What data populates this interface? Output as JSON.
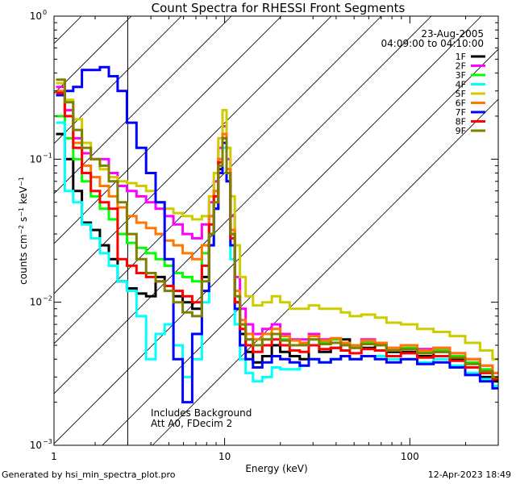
{
  "footer": {
    "generated": "Generated by hsi_min_spectra_plot.pro",
    "timestamp": "12-Apr-2023 18:49"
  },
  "chart_data": {
    "type": "line",
    "title": "Count Spectra for RHESSI Front Segments",
    "xlabel": "Energy (keV)",
    "ylabel_parts": {
      "a": "counts cm",
      "exp1": "−2",
      "b": " s",
      "exp2": "−1",
      "c": " keV",
      "exp3": "−1"
    },
    "xscale": "log",
    "yscale": "log",
    "xlim": [
      1.2,
      300
    ],
    "ylim": [
      0.001,
      1
    ],
    "xticks": [
      {
        "value": 1,
        "label": "1"
      },
      {
        "value": 10,
        "label": "10"
      },
      {
        "value": 100,
        "label": "100"
      }
    ],
    "yticks": [
      {
        "value": 0.001,
        "base": "10",
        "exp": "−3"
      },
      {
        "value": 0.01,
        "base": "10",
        "exp": "−2"
      },
      {
        "value": 0.1,
        "base": "10",
        "exp": "−1"
      },
      {
        "value": 1,
        "base": "10",
        "exp": "0"
      }
    ],
    "date": "23-Aug-2005",
    "time_range": "04:09:00 to 04:10:00",
    "annotations": [
      "Includes Background",
      "Att A0, FDecim 2"
    ],
    "hatch_upper_energy": 3,
    "legend_position": "top-right",
    "x": [
      1.3,
      1.45,
      1.6,
      1.8,
      2.0,
      2.25,
      2.5,
      2.8,
      3.15,
      3.55,
      4.0,
      4.5,
      5.0,
      5.6,
      6.3,
      7.1,
      8.0,
      8.5,
      9.0,
      9.5,
      10.0,
      10.5,
      11.0,
      11.7,
      12.5,
      13.5,
      15.0,
      17.0,
      19.0,
      21.0,
      24.0,
      27.0,
      30.0,
      35.0,
      40.0,
      45.0,
      50.0,
      60.0,
      70.0,
      80.0,
      100.0,
      120.0,
      150.0,
      180.0,
      220.0,
      260.0,
      300.0
    ],
    "series": [
      {
        "name": "1F",
        "color": "#000000",
        "values": [
          0.15,
          0.1,
          0.06,
          0.036,
          0.032,
          0.025,
          0.02,
          0.014,
          0.0125,
          0.0115,
          0.011,
          0.015,
          0.013,
          0.011,
          0.01,
          0.009,
          0.015,
          0.03,
          0.045,
          0.085,
          0.14,
          0.08,
          0.03,
          0.01,
          0.006,
          0.0045,
          0.0038,
          0.0042,
          0.005,
          0.0045,
          0.0042,
          0.004,
          0.005,
          0.0045,
          0.0048,
          0.0055,
          0.005,
          0.0048,
          0.0052,
          0.0045,
          0.0045,
          0.0042,
          0.0045,
          0.004,
          0.0035,
          0.003,
          0.0028
        ]
      },
      {
        "name": "2F",
        "color": "#ff00ff",
        "values": [
          0.32,
          0.22,
          0.14,
          0.11,
          0.1,
          0.1,
          0.08,
          0.065,
          0.06,
          0.055,
          0.05,
          0.045,
          0.04,
          0.035,
          0.03,
          0.028,
          0.035,
          0.05,
          0.07,
          0.12,
          0.17,
          0.1,
          0.04,
          0.015,
          0.009,
          0.007,
          0.006,
          0.0065,
          0.007,
          0.006,
          0.0055,
          0.0055,
          0.006,
          0.0055,
          0.0055,
          0.005,
          0.005,
          0.0055,
          0.0052,
          0.0048,
          0.005,
          0.0047,
          0.0048,
          0.0044,
          0.004,
          0.0036,
          0.0032
        ]
      },
      {
        "name": "3F",
        "color": "#00ff00",
        "values": [
          0.2,
          0.14,
          0.1,
          0.07,
          0.055,
          0.045,
          0.038,
          0.03,
          0.026,
          0.024,
          0.022,
          0.02,
          0.018,
          0.016,
          0.015,
          0.014,
          0.022,
          0.04,
          0.06,
          0.1,
          0.15,
          0.085,
          0.03,
          0.011,
          0.007,
          0.0055,
          0.005,
          0.0055,
          0.006,
          0.0055,
          0.005,
          0.005,
          0.0055,
          0.0052,
          0.0055,
          0.005,
          0.0048,
          0.0052,
          0.005,
          0.0046,
          0.0048,
          0.0045,
          0.0046,
          0.0042,
          0.0038,
          0.0034,
          0.003
        ]
      },
      {
        "name": "4F",
        "color": "#00ffff",
        "values": [
          0.18,
          0.06,
          0.05,
          0.035,
          0.028,
          0.022,
          0.018,
          0.014,
          0.012,
          0.008,
          0.004,
          0.006,
          0.007,
          0.005,
          0.003,
          0.004,
          0.01,
          0.025,
          0.045,
          0.08,
          0.12,
          0.07,
          0.02,
          0.007,
          0.004,
          0.0032,
          0.0028,
          0.003,
          0.0035,
          0.0034,
          0.0034,
          0.0036,
          0.004,
          0.0038,
          0.004,
          0.0042,
          0.004,
          0.0042,
          0.0042,
          0.004,
          0.004,
          0.0038,
          0.004,
          0.0036,
          0.0032,
          0.0029,
          0.0026
        ]
      },
      {
        "name": "5F",
        "color": "#cccc00",
        "values": [
          0.34,
          0.26,
          0.19,
          0.13,
          0.1,
          0.085,
          0.075,
          0.07,
          0.068,
          0.065,
          0.06,
          0.05,
          0.045,
          0.042,
          0.04,
          0.038,
          0.04,
          0.055,
          0.08,
          0.14,
          0.22,
          0.12,
          0.055,
          0.025,
          0.015,
          0.011,
          0.0095,
          0.01,
          0.011,
          0.01,
          0.009,
          0.009,
          0.0095,
          0.009,
          0.009,
          0.0085,
          0.008,
          0.0082,
          0.0078,
          0.0072,
          0.007,
          0.0065,
          0.0062,
          0.0058,
          0.0052,
          0.0046,
          0.004
        ]
      },
      {
        "name": "6F",
        "color": "#ff7700",
        "values": [
          0.3,
          0.2,
          0.13,
          0.09,
          0.075,
          0.065,
          0.055,
          0.046,
          0.04,
          0.036,
          0.033,
          0.03,
          0.027,
          0.025,
          0.022,
          0.02,
          0.025,
          0.04,
          0.06,
          0.1,
          0.15,
          0.085,
          0.032,
          0.012,
          0.0075,
          0.006,
          0.0055,
          0.006,
          0.0065,
          0.0058,
          0.0054,
          0.0052,
          0.0058,
          0.0054,
          0.0056,
          0.0052,
          0.005,
          0.0054,
          0.0052,
          0.0048,
          0.005,
          0.0046,
          0.0048,
          0.0044,
          0.004,
          0.0036,
          0.0032
        ]
      },
      {
        "name": "7F",
        "color": "#0000ff",
        "values": [
          0.28,
          0.3,
          0.32,
          0.42,
          0.42,
          0.44,
          0.38,
          0.3,
          0.18,
          0.12,
          0.08,
          0.05,
          0.02,
          0.004,
          0.002,
          0.006,
          0.012,
          0.025,
          0.045,
          0.08,
          0.13,
          0.07,
          0.025,
          0.009,
          0.005,
          0.004,
          0.0035,
          0.0038,
          0.0042,
          0.004,
          0.0038,
          0.0036,
          0.004,
          0.0038,
          0.004,
          0.0042,
          0.004,
          0.0042,
          0.004,
          0.0038,
          0.004,
          0.0037,
          0.0038,
          0.0035,
          0.0031,
          0.0028,
          0.0025
        ]
      },
      {
        "name": "8F",
        "color": "#ff0000",
        "values": [
          0.29,
          0.2,
          0.12,
          0.08,
          0.06,
          0.05,
          0.045,
          0.02,
          0.018,
          0.016,
          0.015,
          0.014,
          0.013,
          0.012,
          0.011,
          0.01,
          0.018,
          0.035,
          0.055,
          0.095,
          0.14,
          0.08,
          0.028,
          0.01,
          0.0065,
          0.005,
          0.0045,
          0.005,
          0.0055,
          0.005,
          0.0046,
          0.0045,
          0.005,
          0.0047,
          0.0048,
          0.0046,
          0.0044,
          0.0047,
          0.0046,
          0.0042,
          0.0044,
          0.0041,
          0.0042,
          0.0039,
          0.0035,
          0.0032,
          0.0029
        ]
      },
      {
        "name": "9F",
        "color": "#808000",
        "values": [
          0.36,
          0.25,
          0.16,
          0.12,
          0.1,
          0.09,
          0.07,
          0.05,
          0.03,
          0.02,
          0.016,
          0.014,
          0.012,
          0.01,
          0.0085,
          0.008,
          0.014,
          0.03,
          0.05,
          0.09,
          0.14,
          0.08,
          0.03,
          0.011,
          0.007,
          0.0055,
          0.005,
          0.0055,
          0.006,
          0.0054,
          0.005,
          0.005,
          0.0055,
          0.0051,
          0.0052,
          0.005,
          0.0048,
          0.0051,
          0.005,
          0.0046,
          0.0047,
          0.0044,
          0.0045,
          0.0041,
          0.0037,
          0.0033,
          0.003
        ]
      }
    ]
  }
}
